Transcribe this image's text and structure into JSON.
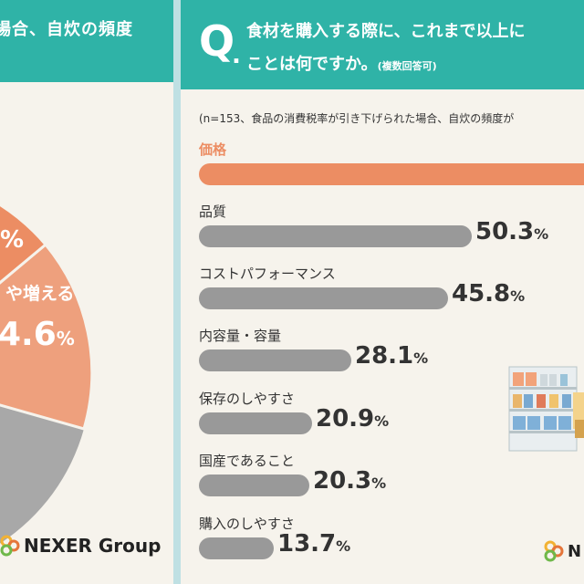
{
  "left_panel": {
    "header_text": "場合、自炊の頻度",
    "slice_labels": [
      {
        "text": "%"
      },
      {
        "text": "や増える"
      },
      {
        "text": "4.6",
        "unit": "%"
      }
    ],
    "brand": "NEXER Group",
    "colors": {
      "slice_top": "#ec8d63",
      "slice_mid": "#eea07d",
      "slice_bottom": "#a8a8a8"
    }
  },
  "right_panel": {
    "q_mark": "Q",
    "q_dot": ".",
    "question_line1": "食材を購入する際に、これまで以上に",
    "question_line2": "ことは何ですか。",
    "question_note": "(複数回答可)",
    "sample_note": "(n=153、食品の消費税率が引き下げられた場合、自炊の頻度が",
    "brand": "N",
    "colors": {
      "header": "#2fb3a7",
      "bar_highlight": "#ec8d63",
      "bar_default": "#999999"
    }
  },
  "chart_data": {
    "type": "bar",
    "orientation": "horizontal",
    "categories": [
      "価格",
      "品質",
      "コストパフォーマンス",
      "内容量・容量",
      "保存のしやすさ",
      "国産であること",
      "購入のしやすさ"
    ],
    "values": [
      null,
      50.3,
      45.8,
      28.1,
      20.9,
      20.3,
      13.7
    ],
    "value_labels": [
      "",
      "50.3",
      "45.8",
      "28.1",
      "20.9",
      "20.3",
      "13.7"
    ],
    "unit": "%",
    "highlight_index": 0,
    "bar_label_y": [
      163,
      231,
      299,
      367,
      436,
      504,
      573
    ]
  }
}
